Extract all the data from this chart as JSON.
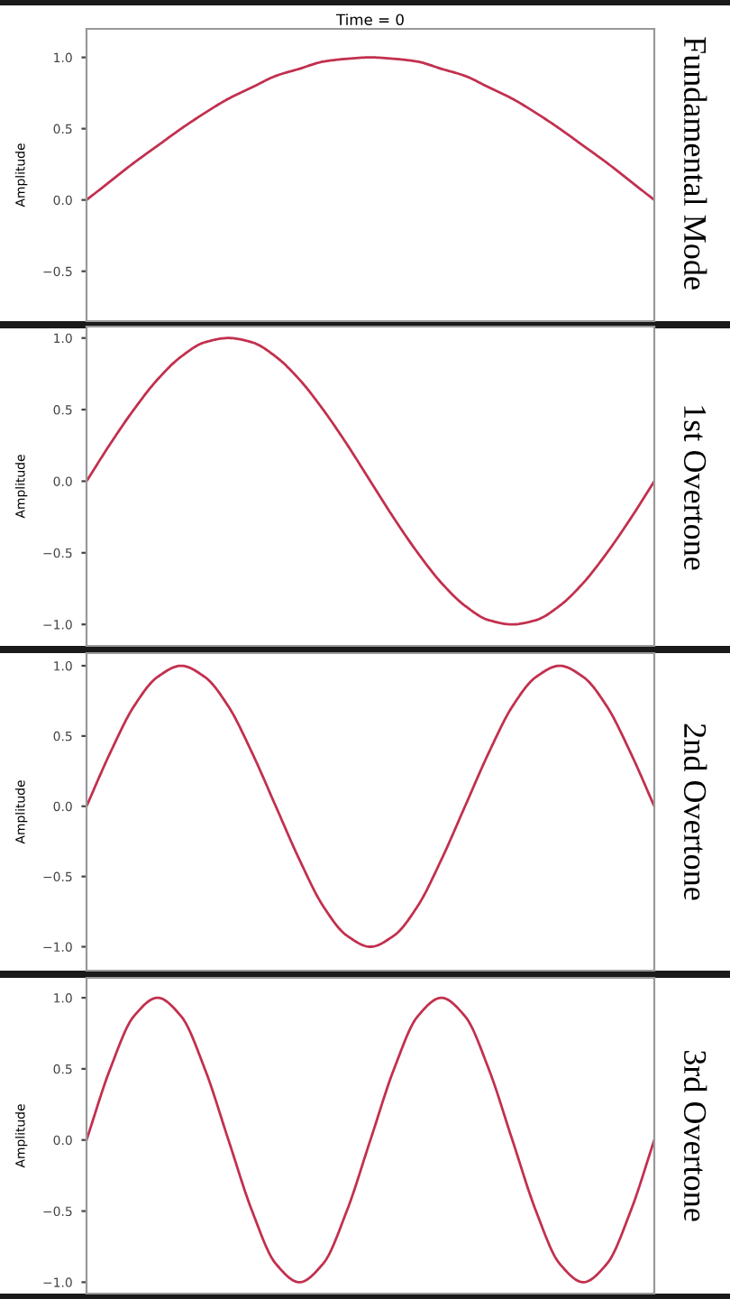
{
  "chart_data": [
    {
      "type": "line",
      "title": "Time = 0",
      "ylabel": "Amplitude",
      "annotations": [
        "Fundamental Mode"
      ],
      "categories": [
        null,
        null,
        null,
        null,
        null,
        null,
        null,
        null,
        null,
        null,
        null,
        null,
        null,
        null,
        null,
        null,
        null,
        null,
        null,
        null,
        null,
        null,
        null,
        null,
        null
      ],
      "tick_labels": "y",
      "ylim": [
        -0.85,
        1.2
      ],
      "yticks": [
        {
          "value": 1.0,
          "label": "1.0"
        },
        {
          "value": 0.5,
          "label": "0.5"
        },
        {
          "value": 0.0,
          "label": "0.0"
        },
        {
          "value": -0.5,
          "label": "−0.5"
        }
      ],
      "series": [
        {
          "color": "#c2304e",
          "values": [
            0,
            0.13,
            0.26,
            0.38,
            0.5,
            0.61,
            0.71,
            0.79,
            0.87,
            0.92,
            0.97,
            0.99,
            1,
            0.99,
            0.97,
            0.92,
            0.87,
            0.79,
            0.71,
            0.61,
            0.5,
            0.38,
            0.26,
            0.13,
            0
          ]
        }
      ]
    },
    {
      "type": "line",
      "ylabel": "Amplitude",
      "annotations": [
        "1st Overtone"
      ],
      "categories": [
        null,
        null,
        null,
        null,
        null,
        null,
        null,
        null,
        null,
        null,
        null,
        null,
        null,
        null,
        null,
        null,
        null,
        null,
        null,
        null,
        null,
        null,
        null,
        null,
        null
      ],
      "tick_labels": "y",
      "ylim": [
        -1.15,
        1.08
      ],
      "yticks": [
        {
          "value": 1.0,
          "label": "1.0"
        },
        {
          "value": 0.5,
          "label": "0.5"
        },
        {
          "value": 0.0,
          "label": "0.0"
        },
        {
          "value": -0.5,
          "label": "−0.5"
        },
        {
          "value": -1.0,
          "label": "−1.0"
        }
      ],
      "series": [
        {
          "color": "#c2304e",
          "values": [
            0,
            0.26,
            0.5,
            0.71,
            0.87,
            0.97,
            1,
            0.97,
            0.87,
            0.71,
            0.5,
            0.26,
            0,
            -0.26,
            -0.5,
            -0.71,
            -0.87,
            -0.97,
            -1,
            -0.97,
            -0.87,
            -0.71,
            -0.5,
            -0.26,
            0
          ]
        }
      ]
    },
    {
      "type": "line",
      "ylabel": "Amplitude",
      "annotations": [
        "2nd Overtone"
      ],
      "categories": [
        null,
        null,
        null,
        null,
        null,
        null,
        null,
        null,
        null,
        null,
        null,
        null,
        null,
        null,
        null,
        null,
        null,
        null,
        null,
        null,
        null,
        null,
        null,
        null,
        null
      ],
      "tick_labels": "y",
      "ylim": [
        -1.17,
        1.09
      ],
      "yticks": [
        {
          "value": 1.0,
          "label": "1.0"
        },
        {
          "value": 0.5,
          "label": "0.5"
        },
        {
          "value": 0.0,
          "label": "0.0"
        },
        {
          "value": -0.5,
          "label": "−0.5"
        },
        {
          "value": -1.0,
          "label": "−1.0"
        }
      ],
      "series": [
        {
          "color": "#c2304e",
          "values": [
            0,
            0.38,
            0.71,
            0.92,
            1,
            0.92,
            0.71,
            0.38,
            0,
            -0.38,
            -0.71,
            -0.92,
            -1,
            -0.92,
            -0.71,
            -0.38,
            0,
            0.38,
            0.71,
            0.92,
            1,
            0.92,
            0.71,
            0.38,
            0
          ]
        }
      ]
    },
    {
      "type": "line",
      "ylabel": "Amplitude",
      "annotations": [
        "3rd Overtone"
      ],
      "categories": [
        null,
        null,
        null,
        null,
        null,
        null,
        null,
        null,
        null,
        null,
        null,
        null,
        null,
        null,
        null,
        null,
        null,
        null,
        null,
        null,
        null,
        null,
        null,
        null,
        null
      ],
      "tick_labels": "y",
      "ylim": [
        -1.08,
        1.14
      ],
      "yticks": [
        {
          "value": 1.0,
          "label": "1.0"
        },
        {
          "value": 0.5,
          "label": "0.5"
        },
        {
          "value": 0.0,
          "label": "0.0"
        },
        {
          "value": -0.5,
          "label": "−0.5"
        },
        {
          "value": -1.0,
          "label": "−1.0"
        }
      ],
      "series": [
        {
          "color": "#c2304e",
          "values": [
            0,
            0.5,
            0.87,
            1,
            0.87,
            0.5,
            0,
            -0.5,
            -0.87,
            -1,
            -0.87,
            -0.5,
            0,
            0.5,
            0.87,
            1,
            0.87,
            0.5,
            0,
            -0.5,
            -0.87,
            -1,
            -0.87,
            -0.5,
            0
          ]
        }
      ]
    }
  ]
}
